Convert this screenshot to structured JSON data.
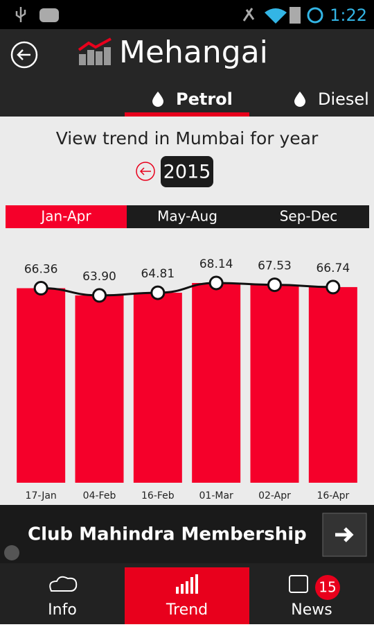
{
  "status_bar": {
    "time": "1:22"
  },
  "header": {
    "title": "Mehangai"
  },
  "fuel_tabs": [
    {
      "label": "Petrol",
      "active": true
    },
    {
      "label": "Diesel",
      "active": false
    }
  ],
  "prompt": "View trend in Mumbai for year",
  "year": "2015",
  "periods": [
    {
      "label": "Jan-Apr",
      "active": true
    },
    {
      "label": "May-Aug",
      "active": false
    },
    {
      "label": "Sep-Dec",
      "active": false
    }
  ],
  "chart_data": {
    "type": "bar",
    "categories": [
      "17-Jan",
      "04-Feb",
      "16-Feb",
      "01-Mar",
      "02-Apr",
      "16-Apr"
    ],
    "values": [
      66.36,
      63.9,
      64.81,
      68.14,
      67.53,
      66.74
    ],
    "value_labels": [
      "66.36",
      "63.90",
      "64.81",
      "68.14",
      "67.53",
      "66.74"
    ],
    "color": "#f5002a",
    "line": true,
    "line_color": "#111111"
  },
  "ad": {
    "text": "Club Mahindra Membership"
  },
  "nav": {
    "items": [
      {
        "label": "Info",
        "active": false
      },
      {
        "label": "Trend",
        "active": true
      },
      {
        "label": "News",
        "active": false
      }
    ],
    "news_badge": 15
  }
}
